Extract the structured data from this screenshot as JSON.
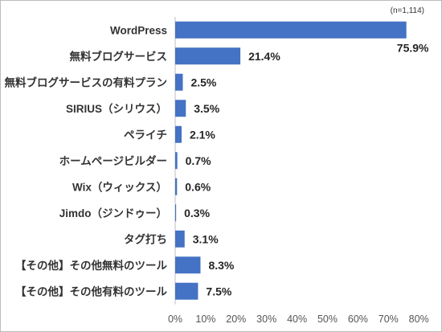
{
  "chart_data": {
    "type": "bar",
    "orientation": "horizontal",
    "note": "(n=1,114)",
    "categories": [
      "WordPress",
      "無料ブログサービス",
      "無料ブログサービスの有料プラン",
      "SIRIUS（シリウス）",
      "ペライチ",
      "ホームページビルダー",
      "Wix（ウィックス）",
      "Jimdo（ジンドゥー）",
      "タグ打ち",
      "【その他】その他無料のツール",
      "【その他】その他有料のツール"
    ],
    "values": [
      75.9,
      21.4,
      2.5,
      3.5,
      2.1,
      0.7,
      0.6,
      0.3,
      3.1,
      8.3,
      7.5
    ],
    "value_labels": [
      "75.9%",
      "21.4%",
      "2.5%",
      "3.5%",
      "2.1%",
      "0.7%",
      "0.6%",
      "0.3%",
      "3.1%",
      "8.3%",
      "7.5%"
    ],
    "xlim": [
      0,
      80
    ],
    "xticks": [
      0,
      10,
      20,
      30,
      40,
      50,
      60,
      70,
      80
    ],
    "xtick_labels": [
      "0%",
      "10%",
      "20%",
      "30%",
      "40%",
      "50%",
      "60%",
      "70%",
      "80%"
    ],
    "bar_color": "#4472c4",
    "grid": false,
    "legend": "none"
  }
}
